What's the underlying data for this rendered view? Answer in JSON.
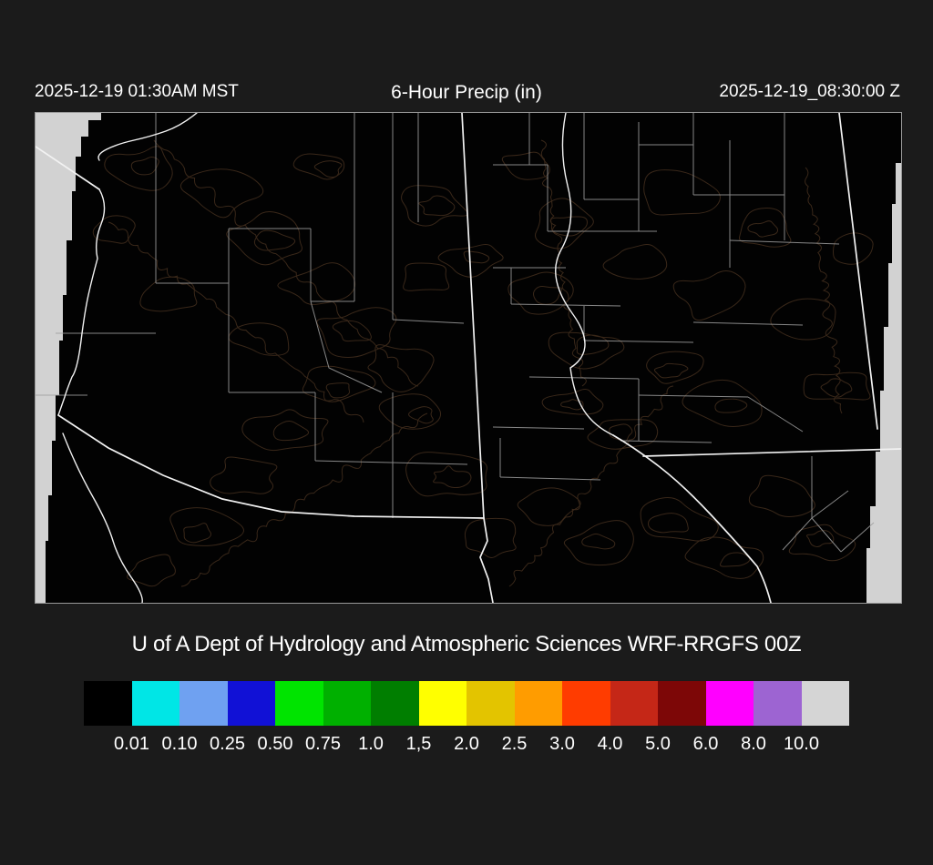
{
  "page": {
    "background": "#1b1b1b",
    "text_color": "#ffffff"
  },
  "header": {
    "left_timestamp": "2025-12-19 01:30AM MST",
    "title": "6-Hour Precip (in)",
    "right_timestamp": "2025-12-19_08:30:00 Z"
  },
  "footer": {
    "credit": "U of A Dept of Hydrology and Atmospheric Sciences WRF-RRGFS 00Z"
  },
  "map": {
    "background": "#020202",
    "outside_domain_color": "#d2d2d2",
    "state_border_color": "#f2f2f2",
    "river_color": "#f2f2f2",
    "county_border_color": "#9f9f9f",
    "contour_color": "#3c2a1b",
    "frame_color": "#9a9a9a"
  },
  "colorbar": {
    "units": "in",
    "labels": [
      "0.01",
      "0.10",
      "0.25",
      "0.50",
      "0.75",
      "1.0",
      "1,5",
      "2.0",
      "2.5",
      "3.0",
      "4.0",
      "5.0",
      "6.0",
      "8.0",
      "10.0"
    ],
    "colors": [
      "#000000",
      "#00e6e6",
      "#6fa1f1",
      "#1111d6",
      "#00e400",
      "#00b000",
      "#007e00",
      "#ffff00",
      "#e3c400",
      "#ff9c00",
      "#ff3c00",
      "#c52717",
      "#7d0707",
      "#ff00ff",
      "#9d64d2",
      "#d5d5d5"
    ]
  }
}
